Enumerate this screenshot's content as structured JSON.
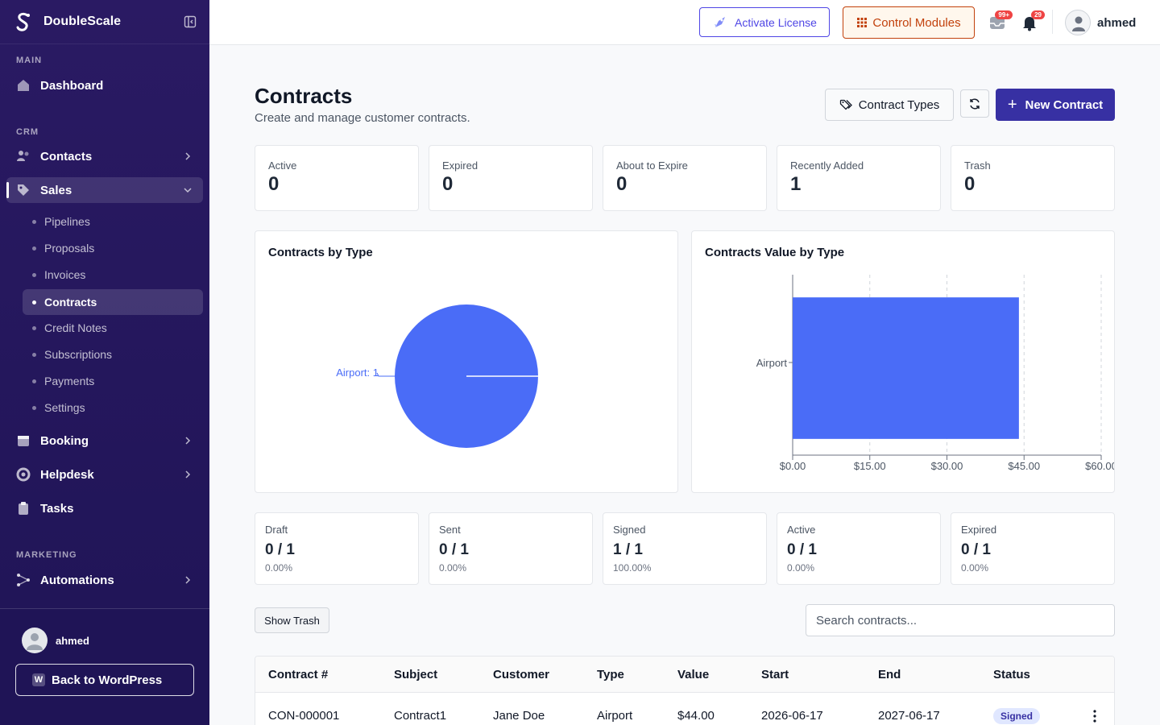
{
  "app": {
    "brand": "DoubleScale",
    "user": "ahmed"
  },
  "sidebar": {
    "sections": {
      "main": "MAIN",
      "crm": "CRM",
      "marketing": "MARKETING"
    },
    "items": {
      "dashboard": "Dashboard",
      "contacts": "Contacts",
      "sales": "Sales",
      "booking": "Booking",
      "helpdesk": "Helpdesk",
      "tasks": "Tasks",
      "automations": "Automations"
    },
    "sales_sub": [
      "Pipelines",
      "Proposals",
      "Invoices",
      "Contracts",
      "Credit Notes",
      "Subscriptions",
      "Payments",
      "Settings"
    ],
    "back_to_wp": "Back to WordPress"
  },
  "topbar": {
    "activate": "Activate License",
    "modules": "Control Modules",
    "inbox_badge": "99+",
    "notif_badge": "29"
  },
  "page": {
    "title": "Contracts",
    "subtitle": "Create and manage customer contracts.",
    "contract_types": "Contract Types",
    "new_contract": "New Contract"
  },
  "stats": [
    {
      "label": "Active",
      "value": "0"
    },
    {
      "label": "Expired",
      "value": "0"
    },
    {
      "label": "About to Expire",
      "value": "0"
    },
    {
      "label": "Recently Added",
      "value": "1"
    },
    {
      "label": "Trash",
      "value": "0"
    }
  ],
  "status_stats": [
    {
      "label": "Draft",
      "value": "0 / 1",
      "pct": "0.00%"
    },
    {
      "label": "Sent",
      "value": "0 / 1",
      "pct": "0.00%"
    },
    {
      "label": "Signed",
      "value": "1 / 1",
      "pct": "100.00%"
    },
    {
      "label": "Active",
      "value": "0 / 1",
      "pct": "0.00%"
    },
    {
      "label": "Expired",
      "value": "0 / 1",
      "pct": "0.00%"
    }
  ],
  "chart_data": [
    {
      "type": "pie",
      "title": "Contracts by Type",
      "categories": [
        "Airport"
      ],
      "values": [
        1
      ],
      "data_labels": [
        "Airport: 1"
      ],
      "color": "#4a6cf7"
    },
    {
      "type": "bar",
      "orientation": "horizontal",
      "title": "Contracts Value by Type",
      "categories": [
        "Airport"
      ],
      "values": [
        44
      ],
      "xlim": [
        0,
        60
      ],
      "x_ticks": [
        "$0.00",
        "$15.00",
        "$30.00",
        "$45.00",
        "$60.00"
      ],
      "grid": true,
      "color": "#4a6cf7"
    }
  ],
  "controls": {
    "show_trash": "Show Trash",
    "search_placeholder": "Search contracts..."
  },
  "table": {
    "headers": [
      "Contract #",
      "Subject",
      "Customer",
      "Type",
      "Value",
      "Start",
      "End",
      "Status"
    ],
    "rows": [
      {
        "contract": "CON-000001",
        "subject": "Contract1",
        "customer": "Jane Doe",
        "type": "Airport",
        "value": "$44.00",
        "start": "2026-06-17",
        "end": "2027-06-17",
        "status": "Signed"
      }
    ]
  },
  "colors": {
    "sidebar": "#2a1a63",
    "primary": "#3730a3",
    "accent_orange": "#c2410c",
    "chart_blue": "#4a6cf7"
  }
}
